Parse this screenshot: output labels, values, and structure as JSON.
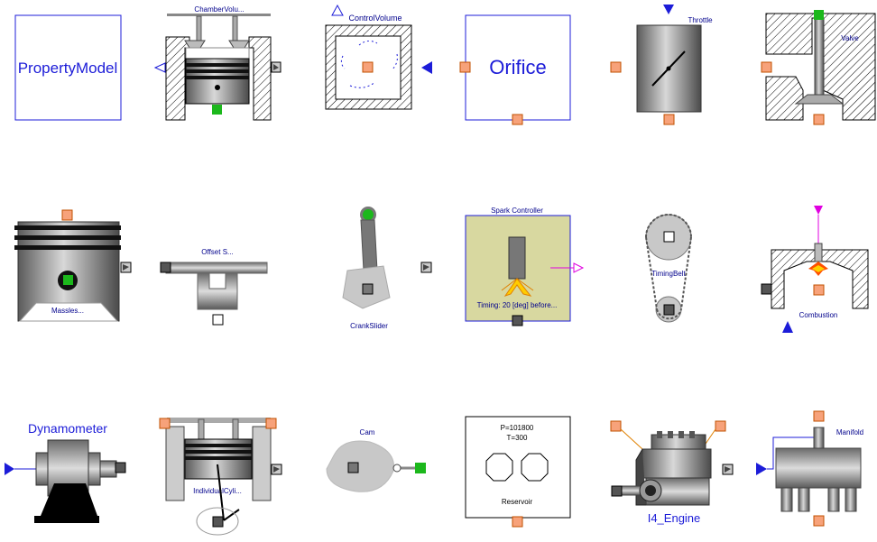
{
  "components": [
    {
      "id": "property_model",
      "label": "PropertyModel"
    },
    {
      "id": "chamber_volume",
      "label": "ChamberVolu..."
    },
    {
      "id": "control_volume",
      "label": "ControlVolume"
    },
    {
      "id": "orifice",
      "label": "Orifice"
    },
    {
      "id": "throttle",
      "label": "Throttle"
    },
    {
      "id": "valve",
      "label": "Valve"
    },
    {
      "id": "massless_piston",
      "label": "Massles..."
    },
    {
      "id": "offset_slider",
      "label": "Offset S..."
    },
    {
      "id": "crank_slider",
      "label": "CrankSlider"
    },
    {
      "id": "spark_controller",
      "label": "Spark Controller",
      "timing": "Timing: 20 [deg] before..."
    },
    {
      "id": "timing_belt",
      "label": "TimingBelt"
    },
    {
      "id": "combustion",
      "label": "Combustion"
    },
    {
      "id": "dynamometer",
      "label": "Dynamometer"
    },
    {
      "id": "individual_cylinder",
      "label": "IndividualCyli..."
    },
    {
      "id": "cam",
      "label": "Cam"
    },
    {
      "id": "reservoir",
      "label": "Reservoir",
      "pressure": "P=101800",
      "temperature": "T=300"
    },
    {
      "id": "i4_engine",
      "label": "I4_Engine"
    },
    {
      "id": "manifold",
      "label": "Manifold"
    }
  ],
  "colors": {
    "label_blue": "#00008c",
    "big_label_blue": "#1c1cd8",
    "port_orange": "#f7a27a",
    "port_green": "#1cb81c",
    "spark_bg": "#d8d8a0",
    "magenta": "#e000e0"
  }
}
